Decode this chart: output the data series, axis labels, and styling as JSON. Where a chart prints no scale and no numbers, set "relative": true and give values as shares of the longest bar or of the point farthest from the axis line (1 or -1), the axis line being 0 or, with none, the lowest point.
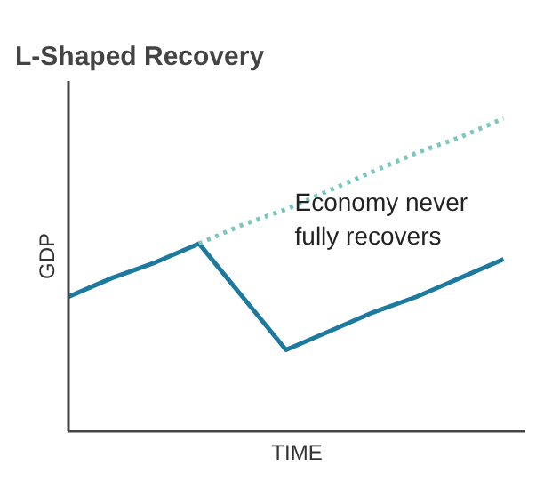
{
  "chart_data": {
    "type": "line",
    "title": "L-Shaped Recovery",
    "xlabel": "TIME",
    "ylabel": "GDP",
    "relative": true,
    "categories": [
      null,
      null,
      null,
      null,
      null,
      null,
      null,
      null,
      null,
      null,
      null
    ],
    "series": [
      {
        "color": "#1d7a9e",
        "line_style": "solid",
        "values": [
          0.43,
          0.49,
          0.54,
          0.6,
          0.43,
          0.26,
          0.32,
          0.38,
          0.43,
          0.49,
          0.55
        ]
      },
      {
        "color": "#7cc6c0",
        "line_style": "dotted",
        "values": [
          null,
          null,
          null,
          0.6,
          0.66,
          0.71,
          0.77,
          0.83,
          0.89,
          0.94,
          1.0
        ]
      }
    ],
    "annotations": [
      "Economy never\nfully recovers"
    ]
  }
}
